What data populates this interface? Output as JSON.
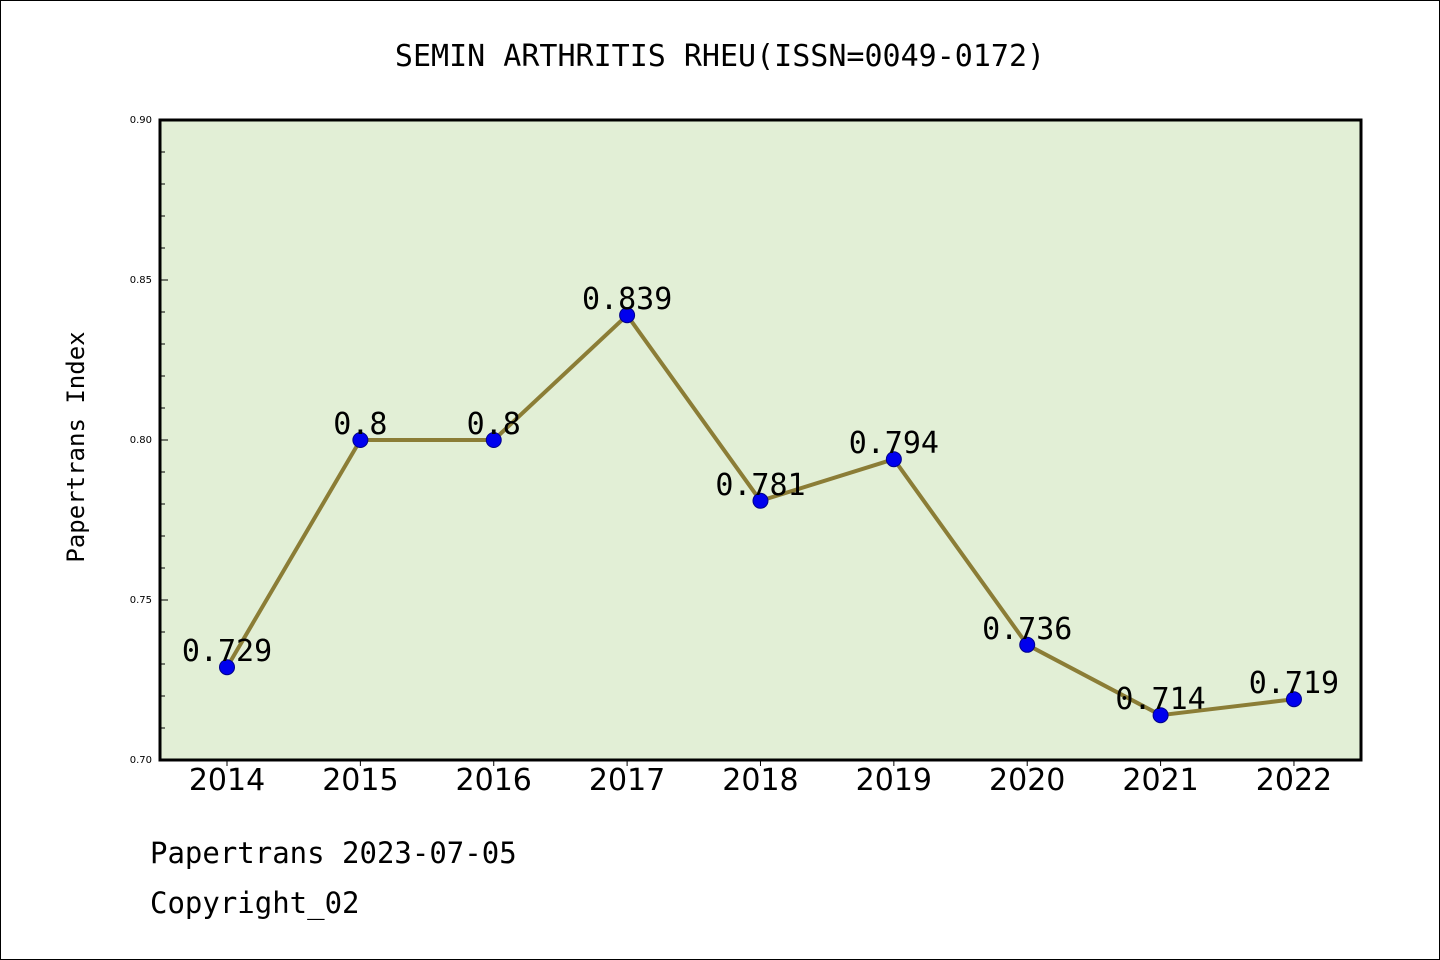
{
  "chart_data": {
    "type": "line",
    "title": "SEMIN ARTHRITIS RHEU(ISSN=0049-0172)",
    "ylabel": "Papertrans Index",
    "xlabel": "",
    "categories": [
      "2014",
      "2015",
      "2016",
      "2017",
      "2018",
      "2019",
      "2020",
      "2021",
      "2022"
    ],
    "series": [
      {
        "values": [
          0.729,
          0.8,
          0.8,
          0.839,
          0.781,
          0.794,
          0.736,
          0.714,
          0.719
        ],
        "labels": [
          "0.729",
          "0.8",
          "0.8",
          "0.839",
          "0.781",
          "0.794",
          "0.736",
          "0.714",
          "0.719"
        ]
      }
    ],
    "ylim": [
      0.7,
      0.9
    ],
    "yticks": [
      "0.70",
      "0.75",
      "0.80",
      "0.85",
      "0.90"
    ],
    "grid": false,
    "colors": {
      "plot_background": "#e2efd6",
      "line": "#8b7d36",
      "marker": "#0000ee",
      "marker_edge": "#00008b"
    }
  },
  "footer": {
    "line1": "Papertrans 2023-07-05",
    "line2": "Copyright_02"
  }
}
